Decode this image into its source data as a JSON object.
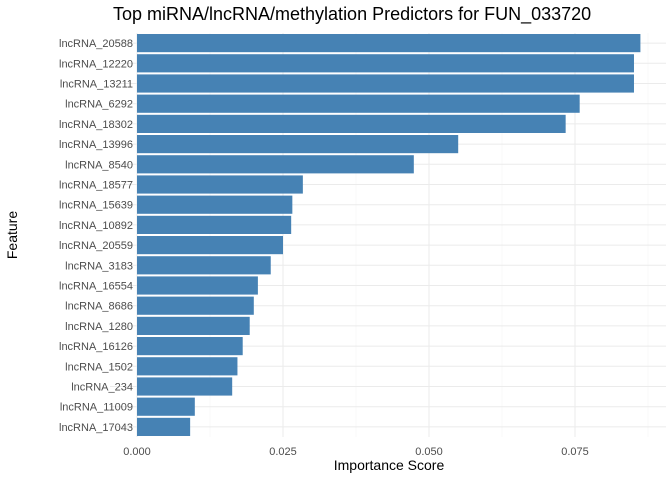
{
  "chart_data": {
    "type": "bar",
    "orientation": "horizontal",
    "title": "Top miRNA/lncRNA/methylation Predictors for FUN_033720",
    "xlabel": "Importance Score",
    "ylabel": "Feature",
    "xlim": [
      0,
      0.088
    ],
    "x_ticks": [
      0,
      0.025,
      0.05,
      0.075
    ],
    "x_tick_labels": [
      "0.000",
      "0.025",
      "0.050",
      "0.075"
    ],
    "grid": true,
    "bar_color": "#4682B4",
    "categories": [
      "lncRNA_20588",
      "lncRNA_12220",
      "lncRNA_13211",
      "lncRNA_6292",
      "lncRNA_18302",
      "lncRNA_13996",
      "lncRNA_8540",
      "lncRNA_18577",
      "lncRNA_15639",
      "lncRNA_10892",
      "lncRNA_20559",
      "lncRNA_3183",
      "lncRNA_16554",
      "lncRNA_8686",
      "lncRNA_1280",
      "lncRNA_16126",
      "lncRNA_1502",
      "lncRNA_234",
      "lncRNA_11009",
      "lncRNA_17043"
    ],
    "values": [
      0.0862,
      0.0851,
      0.0851,
      0.0758,
      0.0734,
      0.055,
      0.0474,
      0.0284,
      0.0266,
      0.0264,
      0.025,
      0.0229,
      0.0207,
      0.02,
      0.0193,
      0.0181,
      0.0172,
      0.0163,
      0.0099,
      0.0091
    ]
  }
}
